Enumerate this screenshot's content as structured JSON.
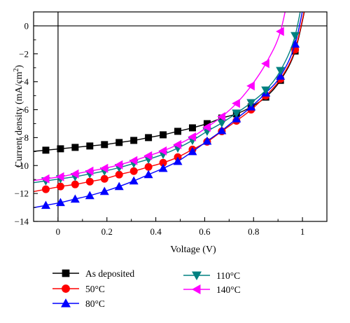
{
  "chart_data": {
    "type": "line",
    "xlabel": "Voltage (V)",
    "ylabel_main": "Current density (mA/cm",
    "ylabel_sup": "2",
    "ylabel_close": ")",
    "xlim": [
      -0.1,
      1.1
    ],
    "ylim": [
      -14,
      1
    ],
    "x_ticks": [
      0,
      0.2,
      0.4,
      0.6,
      0.8,
      1
    ],
    "x_tick_labels": [
      "0",
      "0.2",
      "0.4",
      "0.6",
      "0.8",
      "1"
    ],
    "y_ticks": [
      0,
      -2,
      -4,
      -6,
      -8,
      -10,
      -12,
      -14
    ],
    "y_tick_labels": [
      "0",
      "−2",
      "−4",
      "−6",
      "−8",
      "−10",
      "−12",
      "−14"
    ],
    "grid": false,
    "legend_position": "bottom",
    "series": [
      {
        "name": "As deposited",
        "marker": "square",
        "color": "#000000",
        "x": [
          -0.05,
          0.01,
          0.07,
          0.13,
          0.19,
          0.25,
          0.31,
          0.37,
          0.43,
          0.49,
          0.55,
          0.61,
          0.67,
          0.73,
          0.79,
          0.85,
          0.91,
          0.97
        ],
        "y": [
          -8.9,
          -8.8,
          -8.7,
          -8.6,
          -8.5,
          -8.35,
          -8.2,
          -8.0,
          -7.8,
          -7.55,
          -7.3,
          -7.0,
          -6.6,
          -6.3,
          -5.8,
          -5.1,
          -3.9,
          -1.8
        ]
      },
      {
        "name": "50°C",
        "marker": "circle",
        "color": "#ff0000",
        "x": [
          -0.05,
          0.01,
          0.07,
          0.13,
          0.19,
          0.25,
          0.31,
          0.37,
          0.43,
          0.49,
          0.55,
          0.61,
          0.67,
          0.73,
          0.79,
          0.85,
          0.91,
          0.97
        ],
        "y": [
          -11.7,
          -11.5,
          -11.35,
          -11.15,
          -10.95,
          -10.65,
          -10.4,
          -10.1,
          -9.8,
          -9.4,
          -8.85,
          -8.3,
          -7.55,
          -6.8,
          -6.0,
          -5.0,
          -3.8,
          -1.7
        ]
      },
      {
        "name": "80°C",
        "marker": "triangle-up",
        "color": "#0000ff",
        "x": [
          -0.05,
          0.01,
          0.07,
          0.13,
          0.19,
          0.25,
          0.31,
          0.37,
          0.43,
          0.49,
          0.55,
          0.61,
          0.67,
          0.73,
          0.79,
          0.85,
          0.91,
          0.97
        ],
        "y": [
          -12.85,
          -12.65,
          -12.4,
          -12.15,
          -11.85,
          -11.5,
          -11.1,
          -10.65,
          -10.2,
          -9.7,
          -9.0,
          -8.25,
          -7.5,
          -6.65,
          -5.8,
          -4.8,
          -3.6,
          -1.3
        ]
      },
      {
        "name": "110°C",
        "marker": "triangle-down",
        "color": "#008080",
        "x": [
          -0.05,
          0.01,
          0.07,
          0.13,
          0.19,
          0.25,
          0.31,
          0.37,
          0.43,
          0.49,
          0.55,
          0.61,
          0.67,
          0.73,
          0.79,
          0.85,
          0.91,
          0.97
        ],
        "y": [
          -11.1,
          -10.95,
          -10.8,
          -10.6,
          -10.4,
          -10.15,
          -9.85,
          -9.55,
          -9.2,
          -8.75,
          -8.2,
          -7.55,
          -6.95,
          -6.25,
          -5.5,
          -4.6,
          -3.2,
          -0.7
        ]
      },
      {
        "name": "140°C",
        "marker": "triangle-left",
        "color": "#ff00ff",
        "x": [
          -0.05,
          0.01,
          0.07,
          0.13,
          0.19,
          0.25,
          0.31,
          0.37,
          0.43,
          0.49,
          0.55,
          0.61,
          0.67,
          0.73,
          0.79,
          0.85,
          0.91
        ],
        "y": [
          -10.95,
          -10.8,
          -10.6,
          -10.4,
          -10.2,
          -9.95,
          -9.65,
          -9.3,
          -8.95,
          -8.5,
          -7.95,
          -7.25,
          -6.5,
          -5.55,
          -4.3,
          -2.7,
          -0.4
        ]
      }
    ]
  }
}
